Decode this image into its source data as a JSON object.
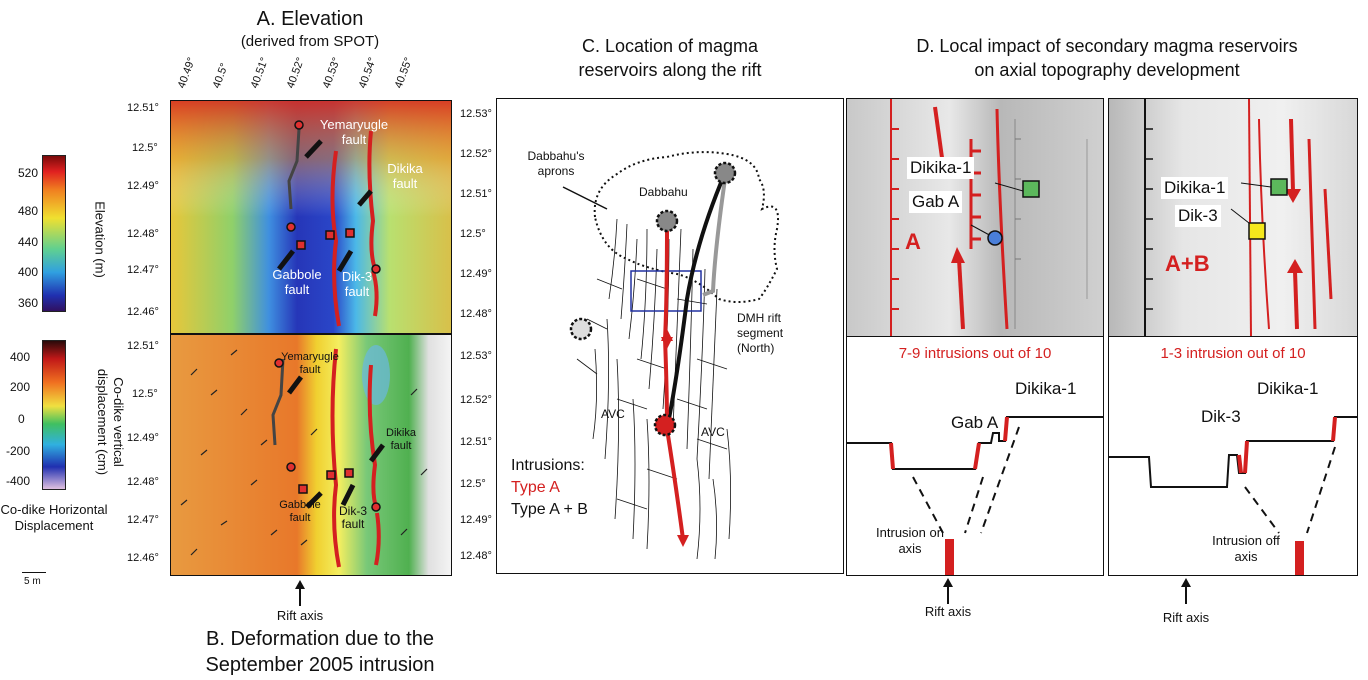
{
  "panelA": {
    "title": "A. Elevation",
    "subtitle": "(derived from SPOT)",
    "lon_ticks": [
      "40.49°",
      "40.5°",
      "40.51°",
      "40.52°",
      "40.53°",
      "40.54°",
      "40.55°"
    ],
    "lat_left": [
      "12.51°",
      "12.5°",
      "12.49°",
      "12.48°",
      "12.47°",
      "12.46°"
    ],
    "lat_right": [
      "12.53°",
      "12.52°",
      "12.51°",
      "12.5°",
      "12.49°",
      "12.48°"
    ],
    "labels": {
      "yemaryugle": "Yemaryugle fault",
      "dikika": "Dikika fault",
      "gabbole": "Gabbole fault",
      "dik3": "Dik-3 fault"
    }
  },
  "legendA": {
    "title": "Elevation (m)",
    "ticks": [
      "520",
      "480",
      "440",
      "400",
      "360"
    ]
  },
  "panelB": {
    "title_line1": "B. Deformation due to the",
    "title_line2": "September 2005 intrusion",
    "axis_label": "Rift axis",
    "lat_left": [
      "12.51°",
      "12.5°",
      "12.49°",
      "12.48°",
      "12.47°",
      "12.46°"
    ],
    "lat_right": [
      "12.53°",
      "12.52°",
      "12.51°",
      "12.5°",
      "12.49°",
      "12.48°"
    ],
    "labels": {
      "yemaryugle": "Yemaryugle fault",
      "dikika": "Dikika fault",
      "gabbole": "Gabbole fault",
      "dik3": "Dik-3 fault"
    }
  },
  "legendB": {
    "title": "Co-dike vertical displacement (cm)",
    "ticks": [
      "400",
      "200",
      "0",
      "-200",
      "-400"
    ],
    "horiz_label": "Co-dike Horizontal Displacement",
    "scale": "5 m"
  },
  "panelC": {
    "title_line1": "C. Location of magma",
    "title_line2": "reservoirs along the rift",
    "aprons": "Dabbahu's aprons",
    "dabbahu": "Dabbahu",
    "dmh": "DMH rift segment (North)",
    "avc1": "AVC",
    "avc2": "AVC",
    "intrusions": "Intrusions:",
    "typeA": "Type A",
    "typeAB": "Type A + B"
  },
  "panelD": {
    "title_line1": "D. Local impact of secondary magma reservoirs",
    "title_line2": "on axial topography development",
    "left": {
      "dikika": "Dikika-1",
      "gab": "Gab A",
      "mode": "A",
      "count": "7-9 intrusions out of 10",
      "prof_dikika": "Dikika-1",
      "prof_gab": "Gab A",
      "intrusion": "Intrusion on axis",
      "axis": "Rift axis"
    },
    "right": {
      "dikika": "Dikika-1",
      "dik3": "Dik-3",
      "mode": "A+B",
      "count": "1-3 intrusion out of 10",
      "prof_dikika": "Dikika-1",
      "prof_dik3": "Dik-3",
      "intrusion": "Intrusion off axis",
      "axis": "Rift axis"
    }
  },
  "colors": {
    "red": "#d42020",
    "green": "#5cb85c",
    "yellow": "#f5e81c",
    "blue": "#4a7fd9"
  }
}
